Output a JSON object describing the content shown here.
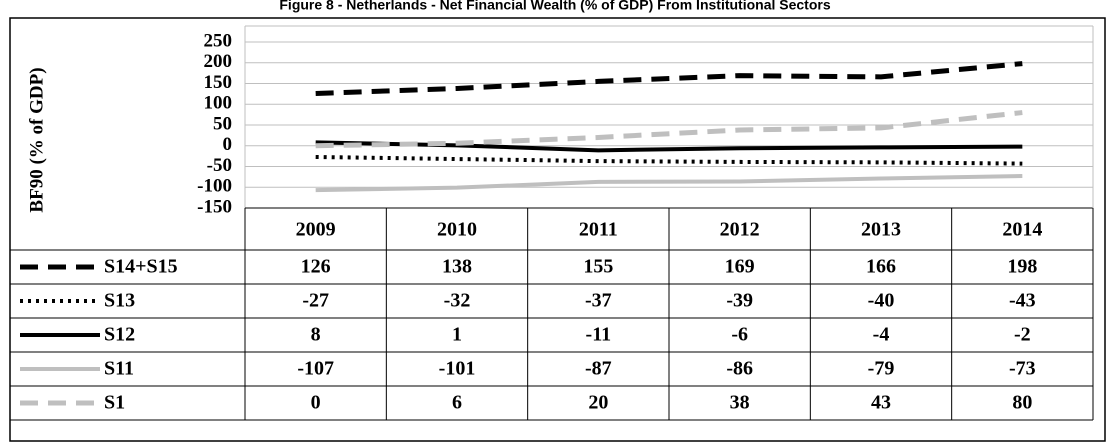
{
  "chart_data": {
    "type": "line",
    "title": "Figure 8 - Netherlands - Net Financial Wealth (% of GDP) From Institutional Sectors",
    "y_label": "BF90 (% of GDP)",
    "categories": [
      "2009",
      "2010",
      "2011",
      "2012",
      "2013",
      "2014"
    ],
    "series": [
      {
        "name": "S14+S15",
        "color": "#000000",
        "dash": "dashed",
        "values": [
          126,
          138,
          155,
          169,
          166,
          198
        ]
      },
      {
        "name": "S13",
        "color": "#000000",
        "dash": "dotted",
        "values": [
          -27,
          -32,
          -37,
          -39,
          -40,
          -43
        ]
      },
      {
        "name": "S12",
        "color": "#000000",
        "dash": "solid",
        "values": [
          8,
          1,
          -11,
          -6,
          -4,
          -2
        ]
      },
      {
        "name": "S11",
        "color": "#bfbfbf",
        "dash": "solid",
        "values": [
          -107,
          -101,
          -87,
          -86,
          -79,
          -73
        ]
      },
      {
        "name": "S1",
        "color": "#bfbfbf",
        "dash": "dashed",
        "values": [
          0,
          6,
          20,
          38,
          43,
          80
        ]
      }
    ],
    "ylim": [
      -150,
      250
    ],
    "yticks": [
      250,
      200,
      150,
      100,
      50,
      0,
      -50,
      -100,
      -150
    ],
    "grid": true
  }
}
